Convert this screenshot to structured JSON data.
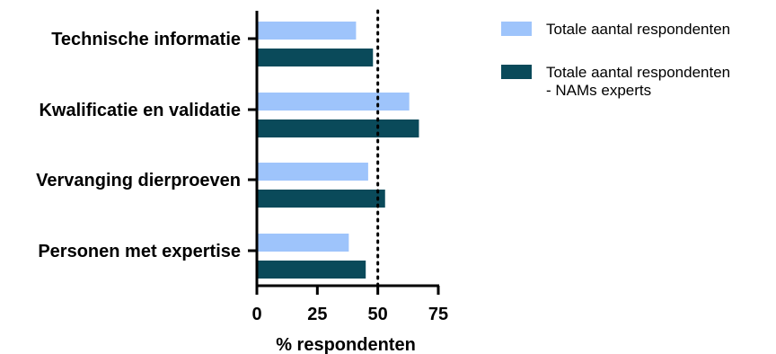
{
  "chart_data": {
    "type": "bar",
    "orientation": "horizontal",
    "categories": [
      "Technische informatie",
      "Kwalificatie en validatie",
      "Vervanging dierproeven",
      "Personen met expertise"
    ],
    "series": [
      {
        "name": "Totale aantal respondenten",
        "values": [
          41,
          63,
          46,
          38
        ],
        "color": "#9ec4fb"
      },
      {
        "name": "Totale aantal respondenten - NAMs experts",
        "values": [
          48,
          67,
          53,
          45
        ],
        "color": "#0a4a5a"
      }
    ],
    "xlabel": "% respondenten",
    "ylabel": "",
    "xlim": [
      0,
      75
    ],
    "xticks": [
      0,
      25,
      50,
      75
    ],
    "reference_line": {
      "value": 50,
      "style": "dotted"
    },
    "grid": false,
    "legend_position": "top-right",
    "legend": {
      "entries": [
        {
          "lines": [
            "Totale aantal respondenten"
          ]
        },
        {
          "lines": [
            "Totale aantal respondenten",
            "- NAMs experts"
          ]
        }
      ]
    }
  }
}
